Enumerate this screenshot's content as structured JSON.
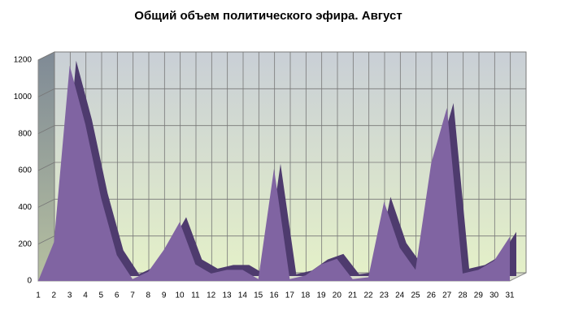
{
  "chart_data": {
    "type": "area",
    "title": "Общий объем политического эфира. Август",
    "categories": [
      "1",
      "2",
      "3",
      "4",
      "5",
      "6",
      "7",
      "8",
      "9",
      "10",
      "11",
      "12",
      "13",
      "14",
      "15",
      "16",
      "17",
      "18",
      "19",
      "20",
      "21",
      "22",
      "23",
      "24",
      "25",
      "26",
      "27",
      "28",
      "29",
      "30",
      "31"
    ],
    "values": [
      0,
      210,
      1170,
      850,
      450,
      140,
      10,
      50,
      170,
      320,
      90,
      40,
      60,
      60,
      10,
      610,
      10,
      30,
      90,
      120,
      10,
      20,
      430,
      180,
      60,
      640,
      940,
      40,
      60,
      110,
      240
    ],
    "color": "#8064a2",
    "ylim": [
      0,
      1200
    ],
    "yticks": [
      0,
      200,
      400,
      600,
      800,
      1000,
      1200
    ],
    "grid": true
  }
}
